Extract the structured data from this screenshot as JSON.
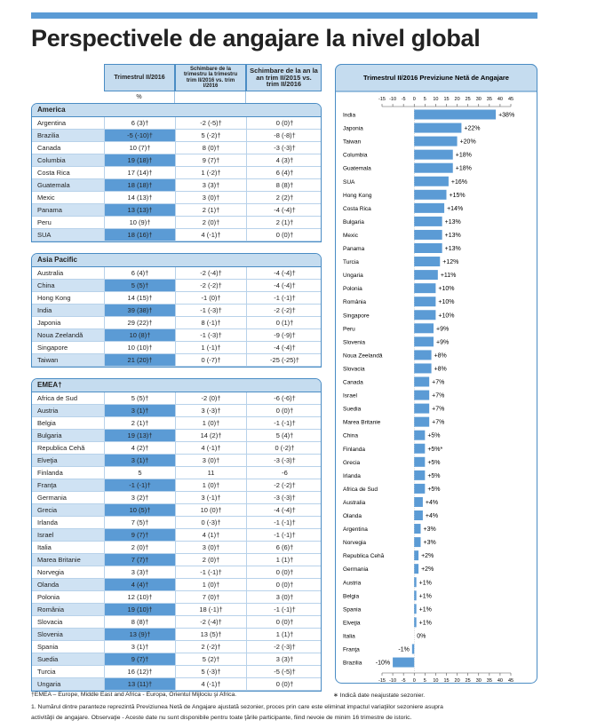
{
  "title": "Perspectivele de angajare la nivel global",
  "table": {
    "headers": [
      "Trimestrul II/2016",
      "Schimbare de la trimestru la trimestru trim II/2016 vs. trim I/2016",
      "Schimbare de la an la an trim II/2015 vs. trim II/2016"
    ],
    "unit": "%",
    "regions": [
      {
        "name": "America",
        "rows": [
          {
            "cells": [
              "Argentina",
              "6 (3)†",
              "-2 (-5)†",
              "0 (0)†"
            ]
          },
          {
            "cells": [
              "Brazilia",
              "-5 (-10)†",
              "5 (-2)†",
              "-8 (-8)†"
            ],
            "highlight": true
          },
          {
            "cells": [
              "Canada",
              "10 (7)†",
              "8 (0)†",
              "-3 (-3)†"
            ]
          },
          {
            "cells": [
              "Columbia",
              "19 (18)†",
              "9 (7)†",
              "4 (3)†"
            ],
            "highlight": true
          },
          {
            "cells": [
              "Costa Rica",
              "17 (14)†",
              "1 (-2)†",
              "6 (4)†"
            ]
          },
          {
            "cells": [
              "Guatemala",
              "18 (18)†",
              "3 (3)†",
              "8 (8)†"
            ],
            "highlight": true
          },
          {
            "cells": [
              "Mexic",
              "14 (13)†",
              "3 (0)†",
              "2 (2)†"
            ]
          },
          {
            "cells": [
              "Panama",
              "13 (13)†",
              "2 (1)†",
              "-4 (-4)†"
            ],
            "highlight": true
          },
          {
            "cells": [
              "Peru",
              "10 (9)†",
              "2 (0)†",
              "2 (1)†"
            ]
          },
          {
            "cells": [
              "SUA",
              "18 (16)†",
              "4 (-1)†",
              "0 (0)†"
            ],
            "highlight": true
          }
        ]
      },
      {
        "name": "Asia Pacific",
        "rows": [
          {
            "cells": [
              "Australia",
              "6 (4)†",
              "-2 (-4)†",
              "-4 (-4)†"
            ]
          },
          {
            "cells": [
              "China",
              "5 (5)†",
              "-2 (-2)†",
              "-4 (-4)†"
            ],
            "highlight": true
          },
          {
            "cells": [
              "Hong Kong",
              "14 (15)†",
              "-1 (0)†",
              "-1 (-1)†"
            ]
          },
          {
            "cells": [
              "India",
              "39 (38)†",
              "-1 (-3)†",
              "-2 (-2)†"
            ],
            "highlight": true
          },
          {
            "cells": [
              "Japonia",
              "29 (22)†",
              "8 (-1)†",
              "0 (1)†"
            ]
          },
          {
            "cells": [
              "Noua Zeelandă",
              "10 (8)†",
              "-1 (-3)†",
              "-9 (-9)†"
            ],
            "highlight": true
          },
          {
            "cells": [
              "Singapore",
              "10 (10)†",
              "1 (-1)†",
              "-4 (-4)†"
            ]
          },
          {
            "cells": [
              "Taiwan",
              "21 (20)†",
              "0 (-7)†",
              "-25 (-25)†"
            ],
            "highlight": true
          }
        ]
      },
      {
        "name": "EMEA†",
        "rows": [
          {
            "cells": [
              "Africa de Sud",
              "5 (5)†",
              "-2 (0)†",
              "-6 (-6)†"
            ]
          },
          {
            "cells": [
              "Austria",
              "3 (1)†",
              "3 (-3)†",
              "0 (0)†"
            ],
            "highlight": true
          },
          {
            "cells": [
              "Belgia",
              "2 (1)†",
              "1 (0)†",
              "-1 (-1)†"
            ]
          },
          {
            "cells": [
              "Bulgaria",
              "19 (13)†",
              "14 (2)†",
              "5 (4)†"
            ],
            "highlight": true
          },
          {
            "cells": [
              "Republica Cehă",
              "4 (2)†",
              "4 (-1)†",
              "0 (-2)†"
            ]
          },
          {
            "cells": [
              "Elveţia",
              "3 (1)†",
              "3 (0)†",
              "-3 (-3)†"
            ],
            "highlight": true
          },
          {
            "cells": [
              "Finlanda",
              "5",
              "11",
              "-6"
            ]
          },
          {
            "cells": [
              "Franţa",
              "-1 (-1)†",
              "1 (0)†",
              "-2 (-2)†"
            ],
            "highlight": true
          },
          {
            "cells": [
              "Germania",
              "3 (2)†",
              "3 (-1)†",
              "-3 (-3)†"
            ]
          },
          {
            "cells": [
              "Grecia",
              "10 (5)†",
              "10 (0)†",
              "-4 (-4)†"
            ],
            "highlight": true
          },
          {
            "cells": [
              "Irlanda",
              "7 (5)†",
              "0 (-3)†",
              "-1 (-1)†"
            ]
          },
          {
            "cells": [
              "Israel",
              "9 (7)†",
              "4 (1)†",
              "-1 (-1)†"
            ],
            "highlight": true
          },
          {
            "cells": [
              "Italia",
              "2 (0)†",
              "3 (0)†",
              "6 (6)†"
            ]
          },
          {
            "cells": [
              "Marea Britanie",
              "7 (7)†",
              "2 (0)†",
              "1 (1)†"
            ],
            "highlight": true
          },
          {
            "cells": [
              "Norvegia",
              "3 (3)†",
              "-1 (-1)†",
              "0 (0)†"
            ]
          },
          {
            "cells": [
              "Olanda",
              "4 (4)†",
              "1 (0)†",
              "0 (0)†"
            ],
            "highlight": true
          },
          {
            "cells": [
              "Polonia",
              "12 (10)†",
              "7 (0)†",
              "3 (0)†"
            ]
          },
          {
            "cells": [
              "România",
              "19 (10)†",
              "18 (-1)†",
              "-1 (-1)†"
            ],
            "highlight": true
          },
          {
            "cells": [
              "Slovacia",
              "8 (8)†",
              "-2 (-4)†",
              "0 (0)†"
            ]
          },
          {
            "cells": [
              "Slovenia",
              "13 (9)†",
              "13 (5)†",
              "1 (1)†"
            ],
            "highlight": true
          },
          {
            "cells": [
              "Spania",
              "3 (1)†",
              "2 (-2)†",
              "-2 (-3)†"
            ]
          },
          {
            "cells": [
              "Suedia",
              "9 (7)†",
              "5 (2)†",
              "3 (3)†"
            ],
            "highlight": true
          },
          {
            "cells": [
              "Turcia",
              "16 (12)†",
              "5 (-3)†",
              "-5 (-5)†"
            ]
          },
          {
            "cells": [
              "Ungaria",
              "13 (11)†",
              "4 (-1)†",
              "0 (0)†"
            ],
            "highlight": true
          }
        ]
      }
    ]
  },
  "chart_data": {
    "type": "bar",
    "orientation": "horizontal",
    "title": "Trimestrul II/2016 Previziune Netă de Angajare",
    "categories": [
      "India",
      "Japonia",
      "Taiwan",
      "Columbia",
      "Guatemala",
      "SUA",
      "Hong Kong",
      "Costa Rica",
      "Bulgaria",
      "Mexic",
      "Panama",
      "Turcia",
      "Ungaria",
      "Polonia",
      "România",
      "Singapore",
      "Peru",
      "Slovenia",
      "Noua Zeelandă",
      "Slovacia",
      "Canada",
      "Israel",
      "Suedia",
      "Marea Britanie",
      "China",
      "Finlanda",
      "Grecia",
      "Irlanda",
      "Africa de Sud",
      "Australia",
      "Olanda",
      "Argentina",
      "Norvegia",
      "Republica Cehă",
      "Germania",
      "Austria",
      "Belgia",
      "Spania",
      "Elveţia",
      "Italia",
      "Franţa",
      "Brazilia"
    ],
    "values": [
      38,
      22,
      20,
      18,
      18,
      16,
      15,
      14,
      13,
      13,
      13,
      12,
      11,
      10,
      10,
      10,
      9,
      9,
      8,
      8,
      7,
      7,
      7,
      7,
      5,
      5,
      5,
      5,
      5,
      4,
      4,
      3,
      3,
      2,
      2,
      1,
      1,
      1,
      1,
      0,
      -1,
      -10
    ],
    "value_labels": [
      "+38%",
      "+22%",
      "+20%",
      "+18%",
      "+18%",
      "+16%",
      "+15%",
      "+14%",
      "+13%",
      "+13%",
      "+13%",
      "+12%",
      "+11%",
      "+10%",
      "+10%",
      "+10%",
      "+9%",
      "+9%",
      "+8%",
      "+8%",
      "+7%",
      "+7%",
      "+7%",
      "+7%",
      "+5%",
      "+5%*",
      "+5%",
      "+5%",
      "+5%",
      "+4%",
      "+4%",
      "+3%",
      "+3%",
      "+2%",
      "+2%",
      "+1%",
      "+1%",
      "+1%",
      "+1%",
      "0%",
      "-1%",
      "-10%"
    ],
    "xlim": [
      -15,
      45
    ],
    "xticks": [
      -15,
      -10,
      -5,
      0,
      5,
      10,
      15,
      20,
      25,
      30,
      35,
      40,
      45
    ],
    "color": "#5b9bd5"
  },
  "footnotes": [
    "†EMEA – Europe, Middle East and Africa - Europa, Orientul Mijlociu şi Africa.",
    "∗ Indică date neajustate sezonier.",
    "1. Numărul dintre paranteze reprezintă Previziunea Netă de Angajare ajustată sezonier, proces prin care este eliminat impactul variaţiilor sezoniere asupra",
    "activităţii de angajare. Observaţie - Aceste date nu sunt disponibile pentru toate ţările participante, fiind nevoie de minim 16 trimestre de istoric."
  ]
}
